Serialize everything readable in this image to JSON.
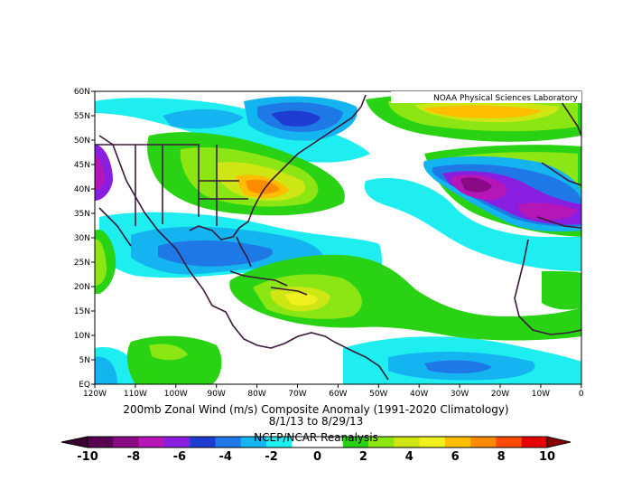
{
  "map": {
    "credit": "NOAA Physical Sciences Laboratory",
    "lat_labels": [
      "60N",
      "55N",
      "50N",
      "45N",
      "40N",
      "35N",
      "30N",
      "25N",
      "20N",
      "15N",
      "10N",
      "5N",
      "EQ"
    ],
    "lon_labels": [
      "120W",
      "110W",
      "100W",
      "90W",
      "80W",
      "70W",
      "60W",
      "50W",
      "40W",
      "30W",
      "20W",
      "10W",
      "0"
    ]
  },
  "titles": {
    "line1": "200mb Zonal Wind (m/s) Composite Anomaly (1991-2020 Climatology)",
    "line2": "8/1/13  to 8/29/13",
    "line3": "NCEP/NCAR Reanalysis"
  },
  "colorbar": {
    "labels": [
      "-10",
      "-8",
      "-6",
      "-4",
      "-2",
      "0",
      "2",
      "4",
      "6",
      "8",
      "10"
    ],
    "colors": [
      "#5a0050",
      "#8a0a86",
      "#b416b8",
      "#8a1ee0",
      "#1e3cd2",
      "#1e78e6",
      "#14b4f0",
      "#1eeef0",
      "#ffffff",
      "#ffffff",
      "#2ad214",
      "#8ce614",
      "#cde614",
      "#f0f01e",
      "#ffbe00",
      "#ff8c00",
      "#ff4a00",
      "#e60000"
    ]
  }
}
